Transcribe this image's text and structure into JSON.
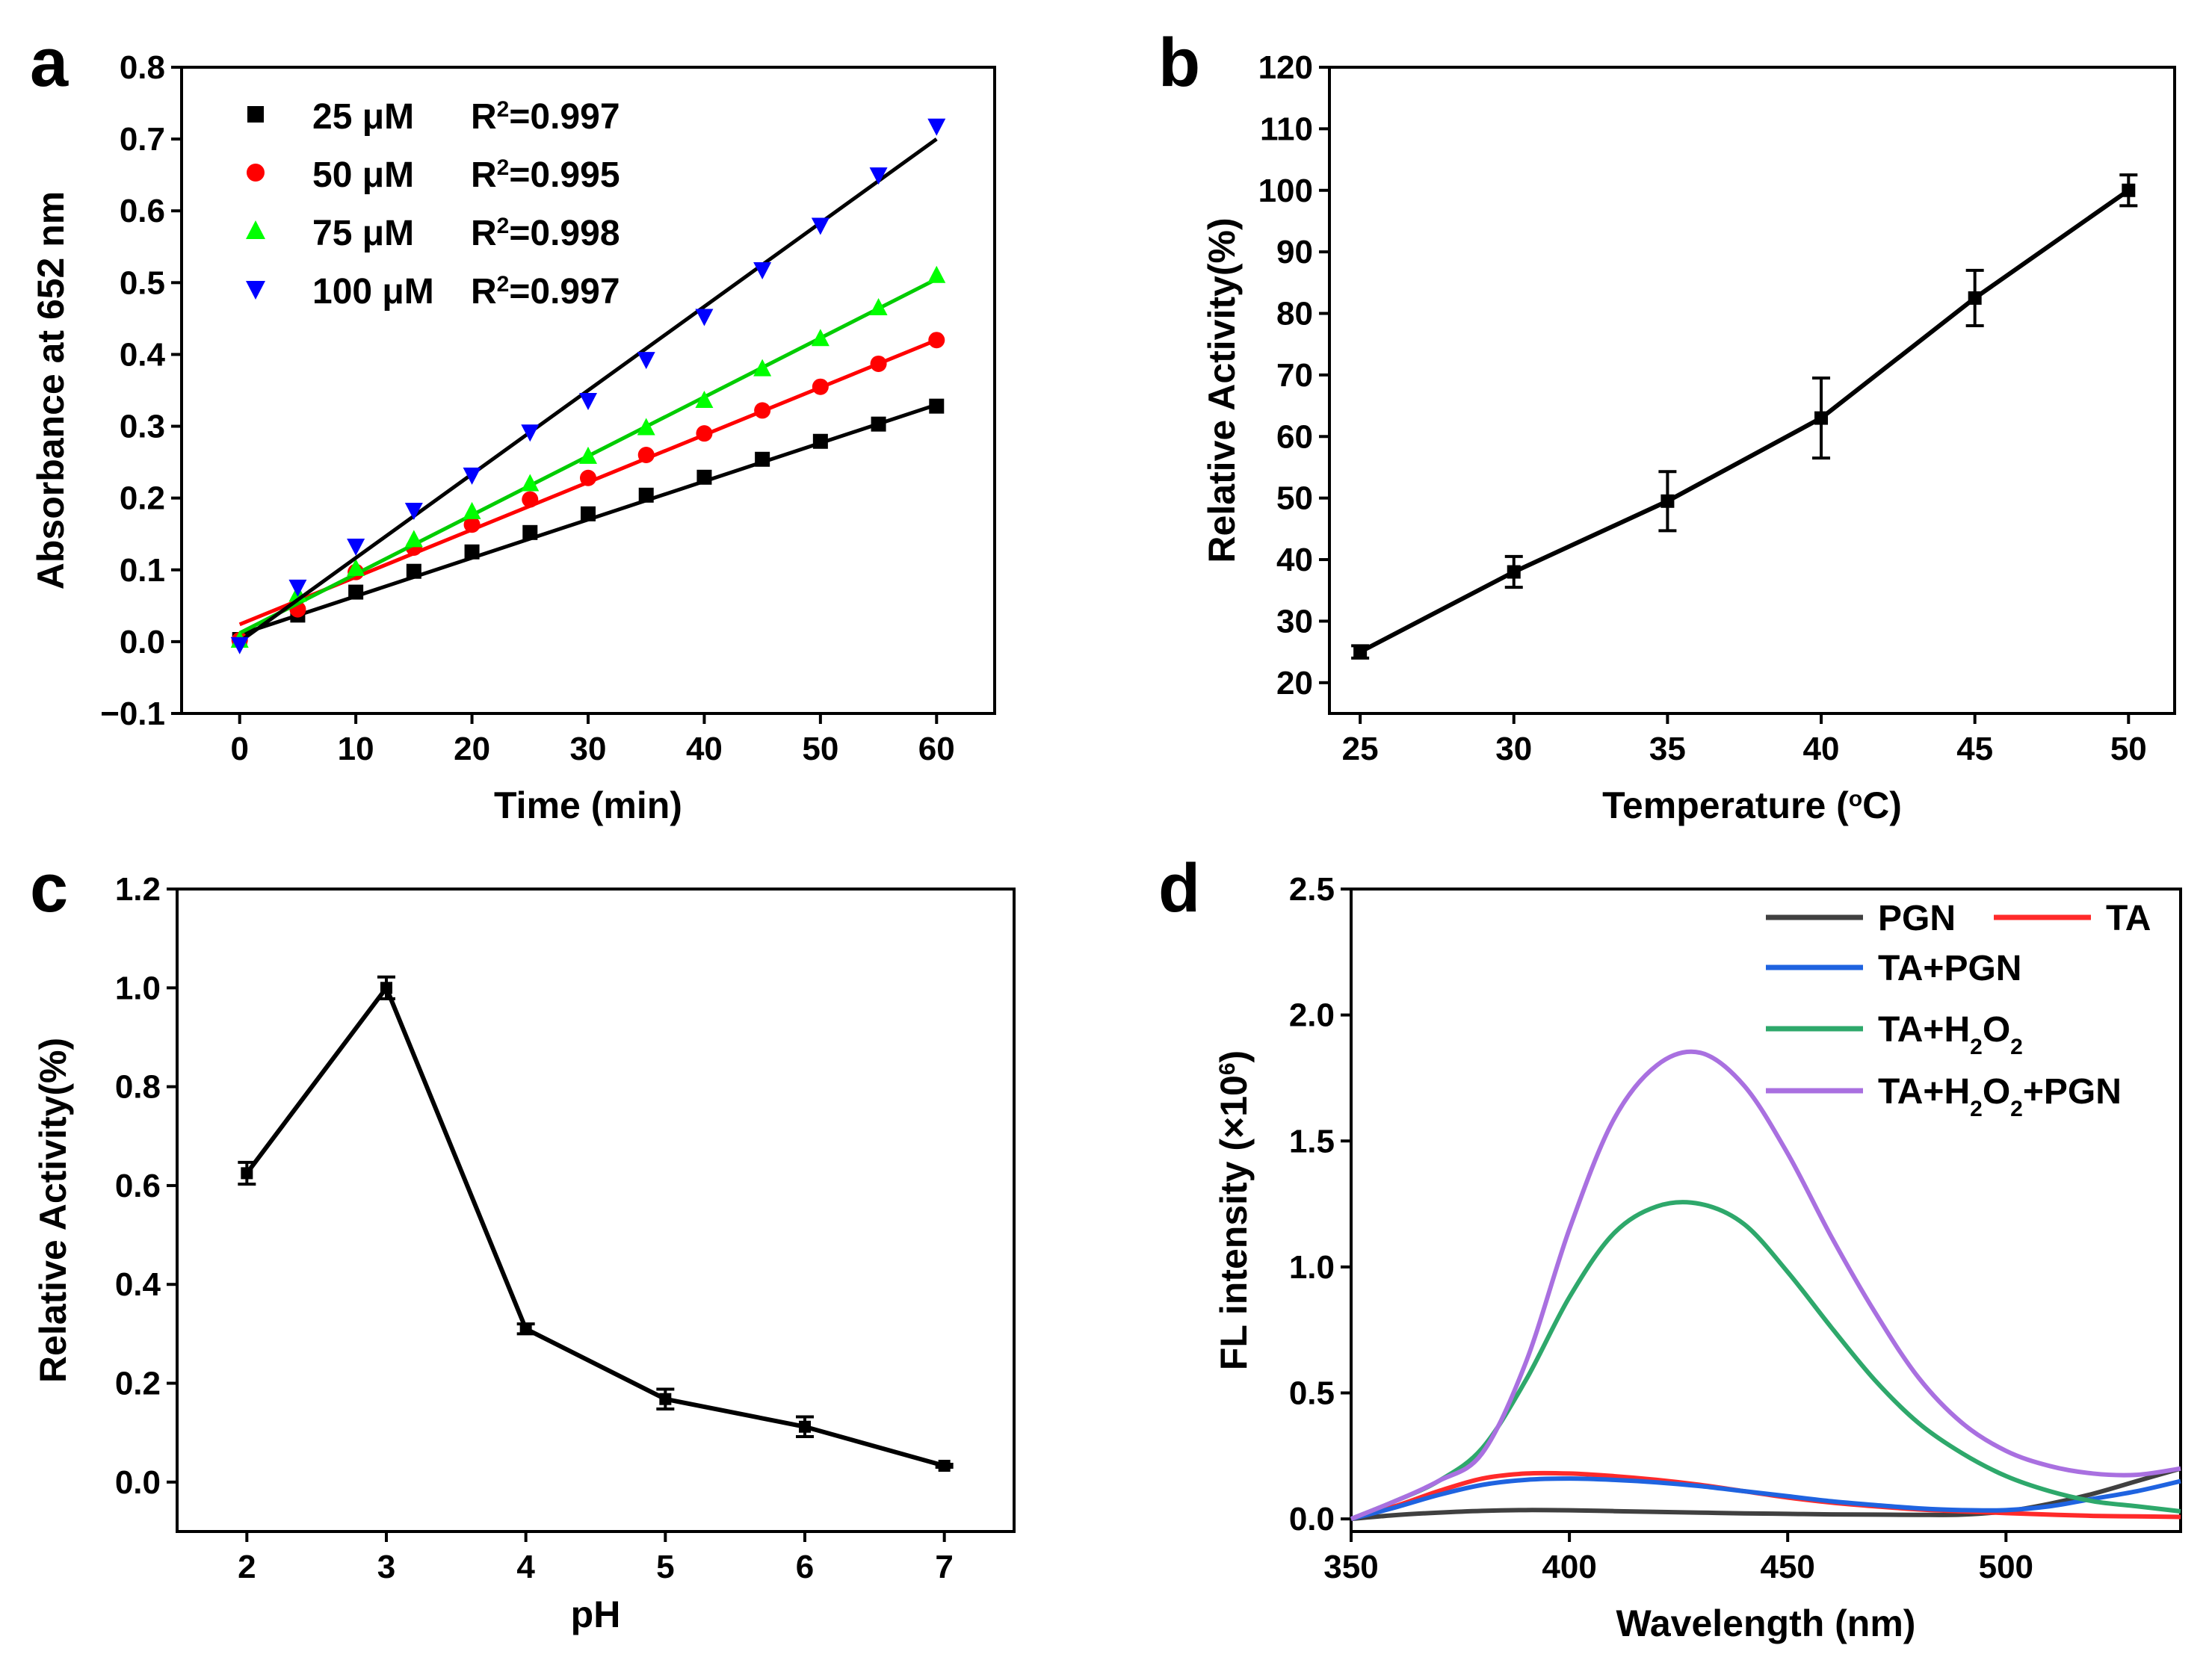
{
  "chart_data": [
    {
      "panel": "a",
      "type": "scatter",
      "title": "",
      "xlabel": "Time (min)",
      "ylabel": "Absorbance at 652 nm",
      "xlim": [
        -5,
        65
      ],
      "ylim": [
        -0.1,
        0.8
      ],
      "xticks": [
        0,
        10,
        20,
        30,
        40,
        50,
        60
      ],
      "yticks": [
        -0.1,
        0.0,
        0.1,
        0.2,
        0.3,
        0.4,
        0.5,
        0.6,
        0.7,
        0.8
      ],
      "legend_position": "top-left",
      "x": [
        0,
        5,
        10,
        15,
        20,
        25,
        30,
        35,
        40,
        45,
        50,
        55,
        60
      ],
      "series": [
        {
          "name": "25 μM",
          "r2_label": "R",
          "r2_sup": "2",
          "r2_value": "=0.997",
          "marker": "square",
          "color": "#000000",
          "line_color": "#000000",
          "values": [
            0.003,
            0.037,
            0.069,
            0.098,
            0.125,
            0.152,
            0.178,
            0.204,
            0.229,
            0.254,
            0.279,
            0.303,
            0.328
          ],
          "fit": [
            0.01,
            0.33
          ]
        },
        {
          "name": "50 μM",
          "r2_label": "R",
          "r2_sup": "2",
          "r2_value": "=0.995",
          "marker": "circle",
          "color": "#ff0000",
          "line_color": "#ff0000",
          "values": [
            0.002,
            0.045,
            0.097,
            0.131,
            0.163,
            0.198,
            0.228,
            0.26,
            0.29,
            0.322,
            0.355,
            0.387,
            0.42
          ],
          "fit": [
            0.024,
            0.42
          ]
        },
        {
          "name": "75 μM",
          "r2_label": "R",
          "r2_sup": "2",
          "r2_value": "=0.998",
          "marker": "triangle-up",
          "color": "#00ff00",
          "line_color": "#00cc00",
          "values": [
            0.002,
            0.066,
            0.102,
            0.142,
            0.181,
            0.22,
            0.258,
            0.298,
            0.336,
            0.38,
            0.422,
            0.465,
            0.51
          ],
          "fit": [
            0.012,
            0.505
          ]
        },
        {
          "name": "100 μM",
          "r2_label": "R",
          "r2_sup": "2",
          "r2_value": "=0.997",
          "marker": "triangle-down",
          "color": "#0000ff",
          "line_color": "#000000",
          "values": [
            -0.004,
            0.076,
            0.133,
            0.183,
            0.232,
            0.292,
            0.336,
            0.393,
            0.453,
            0.518,
            0.58,
            0.65,
            0.718
          ],
          "fit": [
            0.0,
            0.7
          ]
        }
      ]
    },
    {
      "panel": "b",
      "type": "line",
      "title": "",
      "xlabel_parts": [
        "Temperature (",
        "o",
        "C)"
      ],
      "ylabel": "Relative Activity(%)",
      "xlim": [
        24,
        51.5
      ],
      "ylim": [
        15,
        120
      ],
      "xticks": [
        25,
        30,
        35,
        40,
        45,
        50
      ],
      "yticks": [
        20,
        30,
        40,
        50,
        60,
        70,
        80,
        90,
        100,
        110,
        120
      ],
      "x": [
        25,
        30,
        35,
        40,
        45,
        50
      ],
      "values": [
        25,
        38,
        49.5,
        63,
        82.5,
        100
      ],
      "errors": [
        1,
        2.5,
        4.8,
        6.5,
        4.5,
        2.5
      ],
      "color": "#000000"
    },
    {
      "panel": "c",
      "type": "line",
      "title": "",
      "xlabel": "pH",
      "ylabel": "Relative Activity(%)",
      "xlim": [
        1.5,
        7.5
      ],
      "ylim": [
        -0.1,
        1.2
      ],
      "xticks": [
        2,
        3,
        4,
        5,
        6,
        7
      ],
      "yticks": [
        0.0,
        0.2,
        0.4,
        0.6,
        0.8,
        1.0,
        1.2
      ],
      "x": [
        2,
        3,
        4,
        5,
        6,
        7
      ],
      "values": [
        0.625,
        1.0,
        0.31,
        0.168,
        0.112,
        0.033
      ],
      "errors": [
        0.022,
        0.022,
        0.01,
        0.02,
        0.02,
        0.003
      ],
      "color": "#000000"
    },
    {
      "panel": "d",
      "type": "line",
      "title": "",
      "xlabel": "Wavelength (nm)",
      "ylabel_parts": [
        "FL intensity (×10",
        "6",
        ")"
      ],
      "xlim": [
        350,
        540
      ],
      "ylim": [
        -0.05,
        2.5
      ],
      "xticks": [
        350,
        400,
        450,
        500
      ],
      "yticks": [
        0.0,
        0.5,
        1.0,
        1.5,
        2.0,
        2.5
      ],
      "legend_position": "top-right",
      "x": [
        350,
        360,
        370,
        380,
        390,
        400,
        410,
        420,
        430,
        440,
        450,
        460,
        470,
        480,
        490,
        500,
        510,
        520,
        530,
        540
      ],
      "series": [
        {
          "name": "PGN",
          "color": "#404040",
          "values": [
            0.0,
            0.015,
            0.025,
            0.032,
            0.035,
            0.034,
            0.031,
            0.028,
            0.025,
            0.022,
            0.02,
            0.018,
            0.017,
            0.016,
            0.017,
            0.03,
            0.06,
            0.1,
            0.15,
            0.2
          ]
        },
        {
          "name": "TA",
          "color": "#ff2a2a",
          "values": [
            0.0,
            0.05,
            0.11,
            0.16,
            0.18,
            0.18,
            0.17,
            0.155,
            0.135,
            0.11,
            0.085,
            0.065,
            0.05,
            0.038,
            0.03,
            0.023,
            0.017,
            0.012,
            0.01,
            0.008
          ]
        },
        {
          "name": "TA+PGN",
          "color": "#1f63e0",
          "values": [
            0.0,
            0.045,
            0.095,
            0.135,
            0.155,
            0.16,
            0.155,
            0.145,
            0.13,
            0.11,
            0.09,
            0.07,
            0.055,
            0.042,
            0.035,
            0.035,
            0.05,
            0.08,
            0.11,
            0.15
          ]
        },
        {
          "name_parts": [
            "TA+H",
            "2",
            "O",
            "2",
            ""
          ],
          "color": "#2ea86b",
          "values": [
            0.0,
            0.07,
            0.15,
            0.28,
            0.55,
            0.88,
            1.13,
            1.24,
            1.25,
            1.17,
            0.98,
            0.76,
            0.55,
            0.38,
            0.26,
            0.17,
            0.11,
            0.07,
            0.05,
            0.03
          ]
        },
        {
          "name_parts": [
            "TA+H",
            "2",
            "O",
            "2",
            "+PGN"
          ],
          "color": "#a970e0",
          "values": [
            0.0,
            0.07,
            0.15,
            0.26,
            0.62,
            1.15,
            1.58,
            1.8,
            1.85,
            1.72,
            1.45,
            1.12,
            0.82,
            0.56,
            0.38,
            0.27,
            0.21,
            0.18,
            0.175,
            0.2
          ]
        }
      ]
    }
  ],
  "panel_labels": [
    "a",
    "b",
    "c",
    "d"
  ]
}
